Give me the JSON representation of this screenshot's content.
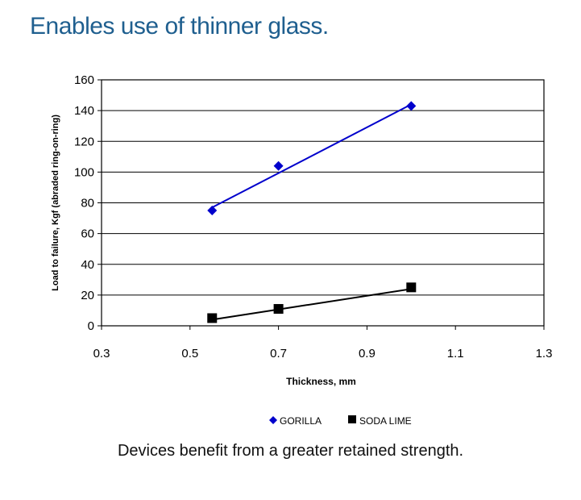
{
  "title": "Enables use of thinner glass.",
  "caption": "Devices benefit from a greater retained strength.",
  "colors": {
    "title": "#1f5f8f",
    "gorilla": "#0000cc",
    "soda_lime": "#000000"
  },
  "chart_data": {
    "type": "scatter",
    "xlabel": "Thickness, mm",
    "ylabel": "Load to failure, Kgf (abraded ring-on-ring)",
    "xlim": [
      0.3,
      1.3
    ],
    "ylim": [
      0,
      160
    ],
    "xticks": [
      "0.3",
      "0.5",
      "0.7",
      "0.9",
      "1.1",
      "1.3"
    ],
    "yticks": [
      "0",
      "20",
      "40",
      "60",
      "80",
      "100",
      "120",
      "140",
      "160"
    ],
    "grid": "horizontal",
    "legend_position": "bottom",
    "series": [
      {
        "name": "GORILLA",
        "marker": "diamond",
        "color": "#0000cc",
        "x": [
          0.55,
          0.7,
          1.0
        ],
        "y": [
          75,
          104,
          143
        ],
        "trendline": [
          [
            0.55,
            77
          ],
          [
            1.0,
            144
          ]
        ]
      },
      {
        "name": "SODA LIME",
        "marker": "square",
        "color": "#000000",
        "x": [
          0.55,
          0.7,
          1.0
        ],
        "y": [
          5,
          11,
          25
        ],
        "trendline": [
          [
            0.55,
            4
          ],
          [
            1.0,
            24
          ]
        ]
      }
    ]
  }
}
